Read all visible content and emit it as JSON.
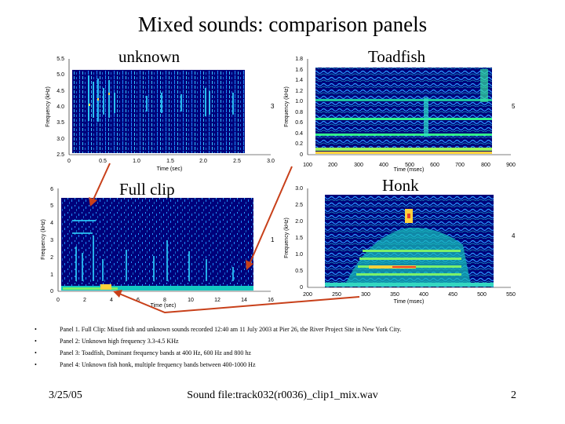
{
  "slide_title": "Mixed sounds: comparison panels",
  "panel_titles": {
    "unknown": "unknown",
    "toadfish": "Toadfish",
    "full_clip": "Full clip",
    "honk": "Honk"
  },
  "chart_data": [
    {
      "type": "heatmap",
      "panel": "unknown",
      "xlabel": "Time (sec)",
      "ylabel": "Frequency (kHz)",
      "x_ticks": [
        "0",
        "0.5",
        "1.0",
        "1.5",
        "2.0",
        "2.5",
        "3.0"
      ],
      "y_ticks": [
        "2.5",
        "3.0",
        "3.5",
        "4.0",
        "4.5",
        "5.0",
        "5.5"
      ],
      "xlim": [
        0,
        3.0
      ],
      "ylim": [
        2.5,
        5.5
      ],
      "side_label": "3"
    },
    {
      "type": "heatmap",
      "panel": "toadfish",
      "xlabel": "Time (msec)",
      "ylabel": "Frequency (kHz)",
      "x_ticks": [
        "100",
        "200",
        "300",
        "400",
        "500",
        "600",
        "700",
        "800",
        "900"
      ],
      "y_ticks": [
        "0",
        "0.2",
        "0.4",
        "0.6",
        "0.8",
        "1.0",
        "1.2",
        "1.4",
        "1.6",
        "1.8"
      ],
      "xlim": [
        100,
        900
      ],
      "ylim": [
        0,
        1.8
      ],
      "side_label": "5",
      "bands_khz": [
        0.4,
        0.6,
        0.8
      ]
    },
    {
      "type": "heatmap",
      "panel": "full_clip",
      "xlabel": "Time (sec)",
      "ylabel": "Frequency (kHz)",
      "x_ticks": [
        "0",
        "2",
        "4",
        "6",
        "8",
        "10",
        "12",
        "14",
        "16"
      ],
      "y_ticks": [
        "0",
        "1",
        "2",
        "3",
        "4",
        "5",
        "6"
      ],
      "xlim": [
        0,
        16
      ],
      "ylim": [
        0,
        6
      ],
      "side_label": "1"
    },
    {
      "type": "heatmap",
      "panel": "honk",
      "xlabel": "Time (msec)",
      "ylabel": "Frequency (kHz)",
      "x_ticks": [
        "200",
        "250",
        "300",
        "350",
        "400",
        "450",
        "500",
        "550"
      ],
      "y_ticks": [
        "0",
        "0.5",
        "1.0",
        "1.5",
        "2.0",
        "2.5",
        "3.0"
      ],
      "xlim": [
        200,
        550
      ],
      "ylim": [
        0,
        3.0
      ],
      "side_label": "4"
    }
  ],
  "captions": [
    "Panel 1. Full Clip: Mixed fish and unknown sounds recorded 12:40 am 11 July 2003 at Pier 26, the River Project Site in New York City.",
    "Panel 2: Unknown high frequency 3.3-4.5 KHz",
    "Panel 3: Toadfish, Dominant frequency bands at 400 Hz, 600 Hz and 800 hz",
    "Panel 4: Unknown fish honk, multiple frequency bands between 400-1000 Hz"
  ],
  "footer": {
    "date": "3/25/05",
    "sound_file": "Sound file:track032(r0036)_clip1_mix.wav",
    "page_number": "2"
  },
  "colors": {
    "spectrogram_bg": "#00007a",
    "arrow": "#c8401a"
  }
}
